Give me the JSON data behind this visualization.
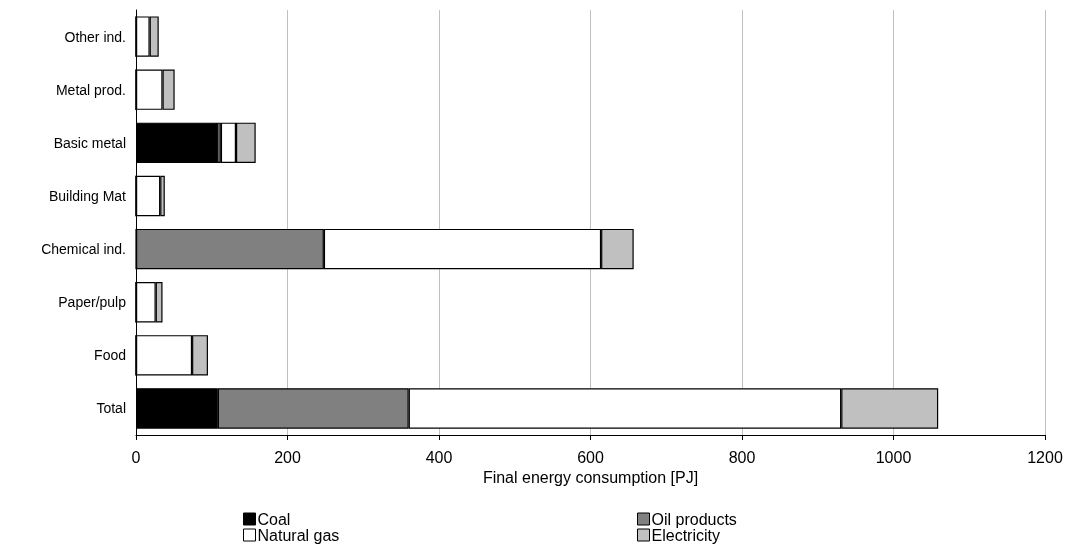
{
  "chart_data": {
    "type": "bar",
    "orientation": "horizontal",
    "stacked": true,
    "xlabel": "Final energy consumption [PJ]",
    "categories": [
      "Other ind.",
      "Metal prod.",
      "Basic metal",
      "Building Mat",
      "Chemical ind.",
      "Paper/pulp",
      "Food",
      "Total"
    ],
    "series": [
      {
        "name": "Coal",
        "color": "#000000",
        "values": [
          0,
          0,
          107,
          0,
          0,
          0,
          0,
          108
        ]
      },
      {
        "name": "Oil products",
        "color": "#808080",
        "values": [
          0,
          0,
          5,
          0,
          248,
          0,
          0,
          252
        ]
      },
      {
        "name": "Natural gas",
        "color": "#ffffff",
        "values": [
          18,
          35,
          20,
          32,
          366,
          26,
          74,
          571
        ]
      },
      {
        "name": "Electricity",
        "color": "#c0c0c0",
        "values": [
          12,
          16,
          26,
          6,
          43,
          9,
          21,
          128
        ]
      }
    ],
    "xlim": [
      0,
      1200
    ],
    "xticks": [
      0,
      200,
      400,
      600,
      800,
      1000,
      1200
    ],
    "grid": "x",
    "legend": "bottom"
  }
}
